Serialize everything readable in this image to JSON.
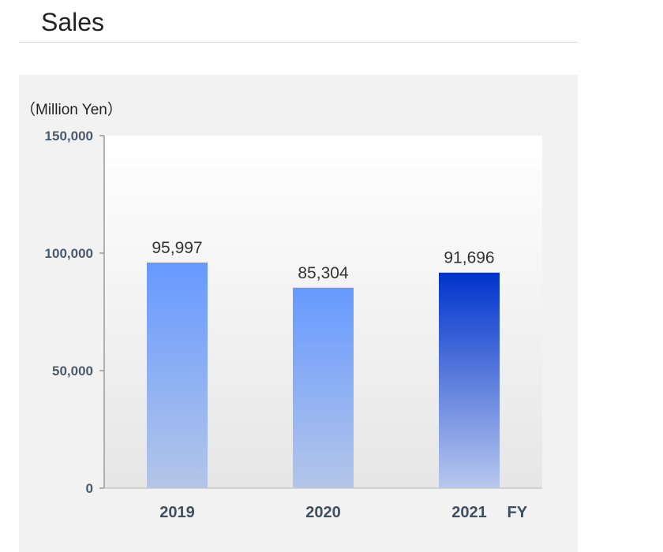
{
  "page": {
    "title": "Sales"
  },
  "chart_data": {
    "type": "bar",
    "title": "Sales",
    "unit_label": "（Million Yen）",
    "x_suffix": "FY",
    "categories": [
      "2019",
      "2020",
      "2021"
    ],
    "values": [
      95997,
      85304,
      91696
    ],
    "value_labels": [
      "95,997",
      "85,304",
      "91,696"
    ],
    "ylim": [
      0,
      150000
    ],
    "yticks": [
      0,
      50000,
      100000,
      150000
    ],
    "ytick_labels": [
      "0",
      "50,000",
      "100,000",
      "150,000"
    ],
    "highlight_index": 2,
    "colors": {
      "bar_top": "#6699ff",
      "bar_bottom": "#b4c6e8",
      "highlight_top": "#0033cc",
      "highlight_bottom": "#b9c8ee",
      "plot_top": "#ffffff",
      "plot_bottom": "#e6e6e6",
      "panel": "#f2f2f2"
    }
  }
}
